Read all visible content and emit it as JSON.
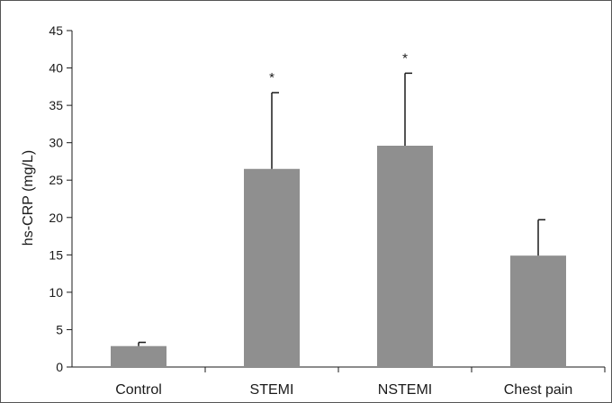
{
  "chart_data": {
    "type": "bar",
    "title": "",
    "xlabel": "",
    "ylabel": "hs-CRP (mg/L)",
    "ylim": [
      0,
      45
    ],
    "yticks": [
      0,
      5,
      10,
      15,
      20,
      25,
      30,
      35,
      40,
      45
    ],
    "categories": [
      "Control",
      "STEMI",
      "NSTEMI",
      "Chest pain"
    ],
    "values": [
      2.8,
      26.5,
      29.6,
      14.9
    ],
    "error_upper": [
      0.5,
      10.2,
      9.7,
      4.8
    ],
    "annotations": [
      "",
      "*",
      "*",
      ""
    ],
    "colors": {
      "bar": "#8f8f8f",
      "axis": "#1a1a1a",
      "frame": "#555555"
    },
    "grid": false,
    "legend": "none"
  }
}
